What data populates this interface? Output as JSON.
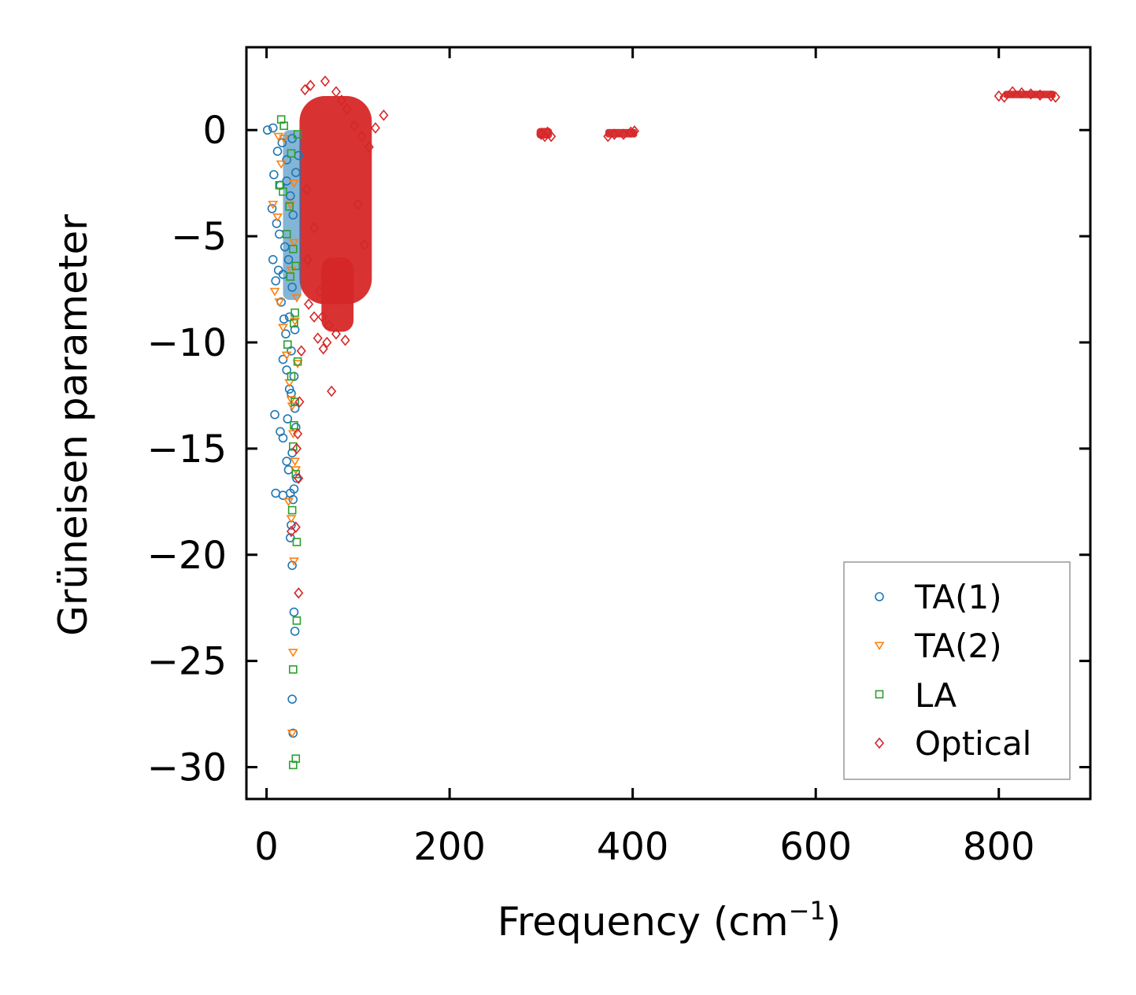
{
  "chart_data": {
    "type": "scatter",
    "title": "",
    "xlabel": "Frequency (cm",
    "xlabel_sup": "−1",
    "xlabel_end": ")",
    "ylabel": "Grüneisen parameter",
    "xlim": [
      -22,
      900
    ],
    "ylim": [
      -31.5,
      3.9
    ],
    "xticks": [
      0,
      200,
      400,
      600,
      800
    ],
    "yticks": [
      0,
      -5,
      -10,
      -15,
      -20,
      -25,
      -30
    ],
    "xtick_labels": [
      "0",
      "200",
      "400",
      "600",
      "800"
    ],
    "ytick_labels": [
      "0",
      "−5",
      "−10",
      "−15",
      "−20",
      "−25",
      "−30"
    ],
    "legend_position": "lower-right",
    "series": [
      {
        "name": "TA(1)",
        "marker": "circle",
        "color": "#1f77b4",
        "points": [
          [
            1,
            0
          ],
          [
            7,
            0.1
          ],
          [
            12,
            -1
          ],
          [
            8,
            -2.1
          ],
          [
            15,
            -2.6
          ],
          [
            6,
            -3.7
          ],
          [
            11,
            -4.4
          ],
          [
            14,
            -4.9
          ],
          [
            7,
            -6.1
          ],
          [
            13,
            -6.6
          ],
          [
            10,
            -7.1
          ],
          [
            18,
            -6.8
          ],
          [
            16,
            -8.1
          ],
          [
            19,
            -8.9
          ],
          [
            21,
            -9.6
          ],
          [
            18,
            -10.8
          ],
          [
            22,
            -11.3
          ],
          [
            25,
            -12.2
          ],
          [
            9,
            -13.4
          ],
          [
            15,
            -14.2
          ],
          [
            18,
            -14.5
          ],
          [
            22,
            -15.6
          ],
          [
            24,
            -16.0
          ],
          [
            10,
            -17.1
          ],
          [
            18,
            -17.2
          ],
          [
            26,
            -17.1
          ],
          [
            29,
            -17.4
          ],
          [
            27,
            -18.6
          ],
          [
            26,
            -19.2
          ],
          [
            28,
            -20.5
          ],
          [
            30,
            -22.7
          ],
          [
            31,
            -23.6
          ],
          [
            28,
            -26.8
          ],
          [
            29,
            -28.4
          ],
          [
            22,
            -2.4
          ],
          [
            26,
            -3.1
          ],
          [
            20,
            -5.5
          ],
          [
            24,
            -6.1
          ],
          [
            28,
            -7.4
          ],
          [
            25,
            -8.8
          ],
          [
            31,
            -9.4
          ],
          [
            27,
            -10.4
          ],
          [
            30,
            -11.6
          ],
          [
            27,
            -12.4
          ],
          [
            31,
            -13.1
          ],
          [
            23,
            -13.6
          ],
          [
            32,
            -14.0
          ],
          [
            28,
            -15.2
          ],
          [
            33,
            -16.4
          ],
          [
            30,
            -16.9
          ],
          [
            17,
            -0.6
          ],
          [
            22,
            -1.4
          ],
          [
            28,
            -0.4
          ],
          [
            32,
            -2.0
          ],
          [
            35,
            -1.2
          ],
          [
            29,
            -4.0
          ]
        ]
      },
      {
        "name": "TA(2)",
        "marker": "triangle-down",
        "color": "#ff7f0e",
        "points": [
          [
            13,
            -0.3
          ],
          [
            19,
            -0.4
          ],
          [
            16,
            -1.6
          ],
          [
            7,
            -3.5
          ],
          [
            12,
            -4.1
          ],
          [
            9,
            -7.6
          ],
          [
            14,
            -8.1
          ],
          [
            18,
            -9.3
          ],
          [
            22,
            -10.6
          ],
          [
            25,
            -11.9
          ],
          [
            27,
            -12.7
          ],
          [
            29,
            -14.3
          ],
          [
            31,
            -15.6
          ],
          [
            24,
            -17.5
          ],
          [
            27,
            -18.3
          ],
          [
            30,
            -20.3
          ],
          [
            29,
            -24.6
          ],
          [
            28,
            -28.4
          ],
          [
            26,
            -3.5
          ],
          [
            30,
            -5.3
          ],
          [
            27,
            -6.6
          ],
          [
            33,
            -7.9
          ],
          [
            31,
            -9.0
          ],
          [
            34,
            -11.0
          ],
          [
            28,
            -13.0
          ],
          [
            32,
            -16.0
          ],
          [
            30,
            -2.5
          ]
        ]
      },
      {
        "name": "LA",
        "marker": "square",
        "color": "#2ca02c",
        "points": [
          [
            16,
            0.5
          ],
          [
            19,
            0.2
          ],
          [
            14,
            -2.6
          ],
          [
            18,
            -2.9
          ],
          [
            22,
            -4.9
          ],
          [
            26,
            -6.9
          ],
          [
            30,
            -9.1
          ],
          [
            23,
            -10.1
          ],
          [
            27,
            -11.6
          ],
          [
            31,
            -12.8
          ],
          [
            29,
            -14.9
          ],
          [
            32,
            -16.2
          ],
          [
            28,
            -17.9
          ],
          [
            33,
            -19.4
          ],
          [
            33,
            -23.1
          ],
          [
            29,
            -25.4
          ],
          [
            32,
            -29.6
          ],
          [
            29,
            -29.9
          ],
          [
            25,
            -3.6
          ],
          [
            29,
            -5.6
          ],
          [
            32,
            -6.4
          ],
          [
            31,
            -8.6
          ],
          [
            34,
            -10.9
          ],
          [
            30,
            -13.9
          ],
          [
            34,
            -0.2
          ],
          [
            27,
            -1.1
          ]
        ]
      },
      {
        "name": "Optical",
        "marker": "diamond",
        "color": "#d62728",
        "points": [
          [
            42,
            1.9
          ],
          [
            48,
            2.1
          ],
          [
            64,
            2.3
          ],
          [
            76,
            1.8
          ],
          [
            82,
            1.4
          ],
          [
            88,
            1.0
          ],
          [
            96,
            0.2
          ],
          [
            104,
            -0.3
          ],
          [
            112,
            -0.8
          ],
          [
            119,
            0.1
          ],
          [
            128,
            0.7
          ],
          [
            52,
            -8.8
          ],
          [
            56,
            -9.8
          ],
          [
            62,
            -10.3
          ],
          [
            66,
            -10.0
          ],
          [
            76,
            -9.6
          ],
          [
            86,
            -9.9
          ],
          [
            71,
            -12.3
          ],
          [
            46,
            -8.2
          ],
          [
            58,
            -7.6
          ],
          [
            34,
            -14.3
          ],
          [
            33,
            -15.0
          ],
          [
            35,
            -16.4
          ],
          [
            27,
            -18.9
          ],
          [
            32,
            -18.7
          ],
          [
            35,
            -21.8
          ],
          [
            36,
            -12.8
          ],
          [
            38,
            -10.4
          ],
          [
            45,
            -6.1
          ],
          [
            100,
            -3.5
          ],
          [
            107,
            -5.4
          ],
          [
            61,
            -8.8
          ],
          [
            68,
            -9.2
          ],
          [
            44,
            -2.8
          ],
          [
            52,
            -4.6
          ],
          [
            300,
            -0.2
          ],
          [
            304,
            -0.3
          ],
          [
            307,
            -0.1
          ],
          [
            311,
            -0.3
          ],
          [
            373,
            -0.3
          ],
          [
            380,
            -0.2
          ],
          [
            390,
            -0.2
          ],
          [
            398,
            -0.1
          ],
          [
            402,
            -0.05
          ],
          [
            800,
            1.6
          ],
          [
            806,
            1.55
          ],
          [
            815,
            1.8
          ],
          [
            825,
            1.75
          ],
          [
            835,
            1.7
          ],
          [
            845,
            1.65
          ],
          [
            857,
            1.6
          ],
          [
            862,
            1.55
          ]
        ]
      }
    ],
    "dense_regions": [
      {
        "series": "Optical",
        "x_range": [
          36,
          115
        ],
        "y_range": [
          -8.2,
          1.6
        ],
        "note": "densely filled optical band"
      },
      {
        "series": "Optical",
        "x_range": [
          60,
          95
        ],
        "y_range": [
          -9.5,
          -6.0
        ],
        "note": "lower dense lobe"
      },
      {
        "series": "Optical",
        "x_range": [
          295,
          312
        ],
        "y_range": [
          -0.4,
          0.1
        ],
        "note": "cluster near 300"
      },
      {
        "series": "Optical",
        "x_range": [
          370,
          405
        ],
        "y_range": [
          -0.35,
          0.05
        ],
        "note": "cluster near 380-400"
      },
      {
        "series": "Optical",
        "x_range": [
          805,
          862
        ],
        "y_range": [
          1.5,
          1.85
        ],
        "note": "cluster near 800-860"
      },
      {
        "series": "TA(1)",
        "x_range": [
          18,
          38
        ],
        "y_range": [
          -8.0,
          0.0
        ],
        "note": "dense acoustic column"
      }
    ]
  }
}
